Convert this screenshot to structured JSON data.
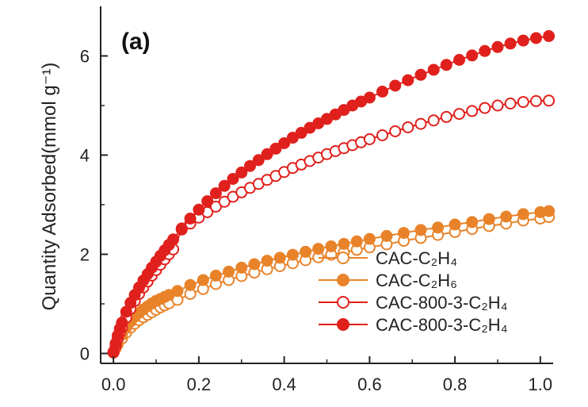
{
  "chart_data": {
    "type": "scatter",
    "panel_label": "(a)",
    "ylabel": "Quantity Adsorbed(mmol g⁻¹)",
    "xlabel": "",
    "xlim": [
      -0.03,
      1.03
    ],
    "ylim": [
      -0.2,
      7.0
    ],
    "xticks": [
      0.0,
      0.2,
      0.4,
      0.6,
      0.8,
      1.0
    ],
    "xtick_labels": [
      "0.0",
      "0.2",
      "0.4",
      "0.6",
      "0.8",
      "1.0"
    ],
    "yticks": [
      0,
      2,
      4,
      6
    ],
    "ytick_labels": [
      "0",
      "2",
      "4",
      "6"
    ],
    "legend_position": "bottom-right",
    "series": [
      {
        "name": "CAC-C₂H₄",
        "marker": "open",
        "color": "#e8832a",
        "x": [
          0.0,
          0.005,
          0.01,
          0.02,
          0.03,
          0.04,
          0.05,
          0.06,
          0.07,
          0.08,
          0.09,
          0.1,
          0.11,
          0.12,
          0.13,
          0.15,
          0.18,
          0.21,
          0.24,
          0.27,
          0.3,
          0.33,
          0.36,
          0.39,
          0.42,
          0.45,
          0.48,
          0.51,
          0.54,
          0.57,
          0.6,
          0.64,
          0.68,
          0.72,
          0.76,
          0.8,
          0.84,
          0.88,
          0.92,
          0.96,
          1.0,
          1.02
        ],
        "y": [
          0.02,
          0.1,
          0.18,
          0.3,
          0.42,
          0.52,
          0.6,
          0.67,
          0.73,
          0.78,
          0.83,
          0.88,
          0.93,
          0.97,
          1.01,
          1.08,
          1.2,
          1.3,
          1.4,
          1.48,
          1.56,
          1.63,
          1.7,
          1.76,
          1.82,
          1.88,
          1.94,
          1.99,
          2.04,
          2.09,
          2.14,
          2.2,
          2.27,
          2.33,
          2.39,
          2.45,
          2.51,
          2.57,
          2.62,
          2.68,
          2.72,
          2.75
        ]
      },
      {
        "name": "CAC-C₂H₆",
        "marker": "filled",
        "color": "#e8832a",
        "x": [
          0.0,
          0.005,
          0.01,
          0.02,
          0.03,
          0.04,
          0.05,
          0.06,
          0.07,
          0.08,
          0.09,
          0.1,
          0.11,
          0.12,
          0.13,
          0.15,
          0.18,
          0.21,
          0.24,
          0.27,
          0.3,
          0.33,
          0.36,
          0.39,
          0.42,
          0.45,
          0.48,
          0.51,
          0.54,
          0.57,
          0.6,
          0.64,
          0.68,
          0.72,
          0.76,
          0.8,
          0.84,
          0.88,
          0.92,
          0.96,
          1.0,
          1.02
        ],
        "y": [
          0.02,
          0.12,
          0.22,
          0.38,
          0.52,
          0.64,
          0.74,
          0.82,
          0.89,
          0.95,
          1.01,
          1.06,
          1.1,
          1.14,
          1.18,
          1.26,
          1.38,
          1.48,
          1.57,
          1.65,
          1.73,
          1.8,
          1.87,
          1.93,
          1.99,
          2.05,
          2.11,
          2.16,
          2.21,
          2.26,
          2.31,
          2.37,
          2.43,
          2.49,
          2.54,
          2.6,
          2.65,
          2.71,
          2.76,
          2.81,
          2.85,
          2.87
        ]
      },
      {
        "name": "CAC-800-3-C₂H₄",
        "marker": "open",
        "color": "#e0201c",
        "x": [
          0.0,
          0.005,
          0.01,
          0.015,
          0.02,
          0.03,
          0.04,
          0.05,
          0.06,
          0.07,
          0.08,
          0.09,
          0.1,
          0.11,
          0.12,
          0.13,
          0.14,
          0.16,
          0.18,
          0.2,
          0.22,
          0.24,
          0.26,
          0.28,
          0.3,
          0.32,
          0.34,
          0.36,
          0.38,
          0.4,
          0.42,
          0.44,
          0.46,
          0.48,
          0.5,
          0.52,
          0.54,
          0.56,
          0.58,
          0.6,
          0.63,
          0.66,
          0.69,
          0.72,
          0.75,
          0.78,
          0.81,
          0.84,
          0.87,
          0.9,
          0.93,
          0.96,
          0.99,
          1.02
        ],
        "y": [
          0.02,
          0.15,
          0.3,
          0.42,
          0.52,
          0.72,
          0.9,
          1.06,
          1.2,
          1.33,
          1.45,
          1.57,
          1.68,
          1.79,
          1.9,
          2.0,
          2.1,
          2.5,
          2.62,
          2.74,
          2.85,
          2.96,
          3.06,
          3.16,
          3.25,
          3.34,
          3.42,
          3.5,
          3.58,
          3.66,
          3.74,
          3.81,
          3.88,
          3.95,
          4.02,
          4.08,
          4.14,
          4.2,
          4.26,
          4.32,
          4.4,
          4.48,
          4.56,
          4.63,
          4.7,
          4.77,
          4.83,
          4.89,
          4.95,
          5.0,
          5.04,
          5.07,
          5.09,
          5.1
        ]
      },
      {
        "name": "CAC-800-3-C₂H₄",
        "marker": "filled",
        "color": "#e0201c",
        "x": [
          0.0,
          0.005,
          0.01,
          0.015,
          0.02,
          0.03,
          0.04,
          0.05,
          0.06,
          0.07,
          0.08,
          0.09,
          0.1,
          0.11,
          0.12,
          0.13,
          0.14,
          0.16,
          0.18,
          0.2,
          0.22,
          0.24,
          0.26,
          0.28,
          0.3,
          0.32,
          0.34,
          0.36,
          0.38,
          0.4,
          0.42,
          0.44,
          0.46,
          0.48,
          0.5,
          0.52,
          0.54,
          0.56,
          0.58,
          0.6,
          0.63,
          0.66,
          0.69,
          0.72,
          0.75,
          0.78,
          0.81,
          0.84,
          0.87,
          0.9,
          0.93,
          0.96,
          0.99,
          1.02
        ],
        "y": [
          0.03,
          0.2,
          0.36,
          0.5,
          0.62,
          0.84,
          1.02,
          1.18,
          1.33,
          1.47,
          1.6,
          1.73,
          1.85,
          1.97,
          2.08,
          2.19,
          2.3,
          2.52,
          2.72,
          2.9,
          3.07,
          3.23,
          3.38,
          3.52,
          3.65,
          3.78,
          3.9,
          4.02,
          4.13,
          4.24,
          4.35,
          4.45,
          4.55,
          4.64,
          4.73,
          4.82,
          4.91,
          5.0,
          5.08,
          5.16,
          5.28,
          5.4,
          5.51,
          5.62,
          5.72,
          5.82,
          5.92,
          6.01,
          6.1,
          6.18,
          6.25,
          6.31,
          6.36,
          6.4
        ]
      }
    ]
  }
}
